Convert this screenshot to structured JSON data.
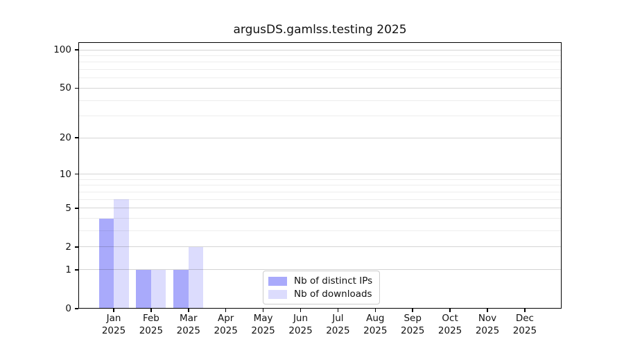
{
  "chart_data": {
    "type": "bar",
    "title": "argusDS.gamlss.testing 2025",
    "categories": [
      "Jan 2025",
      "Feb 2025",
      "Mar 2025",
      "Apr 2025",
      "May 2025",
      "Jun 2025",
      "Jul 2025",
      "Aug 2025",
      "Sep 2025",
      "Oct 2025",
      "Nov 2025",
      "Dec 2025"
    ],
    "series": [
      {
        "name": "Nb of distinct IPs",
        "color": "#a9aafb",
        "values": [
          4,
          1,
          1,
          0,
          0,
          0,
          0,
          0,
          0,
          0,
          0,
          0
        ]
      },
      {
        "name": "Nb of downloads",
        "color": "#dcdcfd",
        "values": [
          6,
          1,
          2,
          0,
          0,
          0,
          0,
          0,
          0,
          0,
          0,
          0
        ]
      }
    ],
    "xlabel": "",
    "ylabel": "",
    "yscale": "log1p",
    "ylim": [
      0,
      115
    ],
    "y_major_ticks": [
      0,
      1,
      2,
      5,
      10,
      20,
      50,
      100
    ],
    "y_minor_ticks": [
      3,
      4,
      6,
      7,
      8,
      9,
      30,
      40,
      60,
      70,
      80,
      90
    ],
    "grid": "on",
    "legend_position": "inside-lower-center"
  }
}
